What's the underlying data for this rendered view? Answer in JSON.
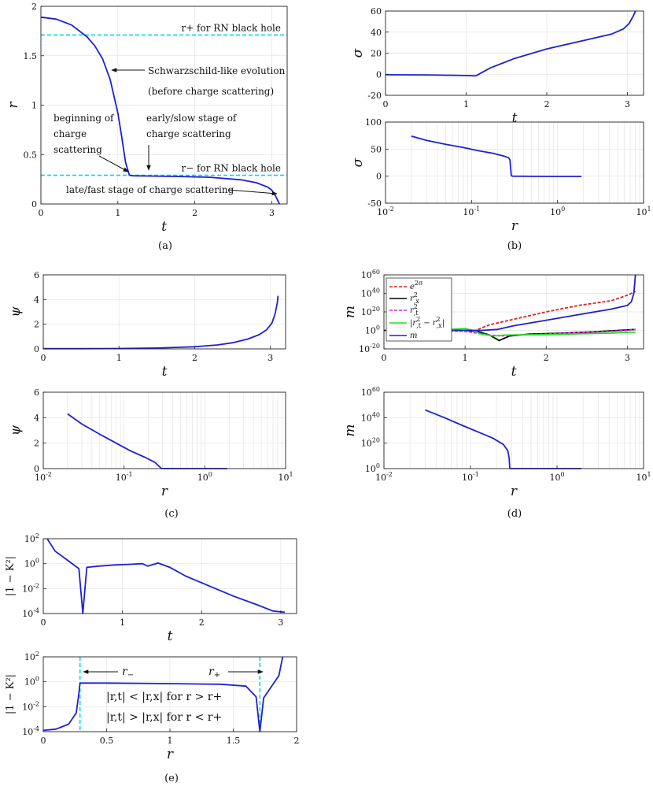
{
  "panels": {
    "a": {
      "caption": "(a)"
    },
    "b": {
      "caption": "(b)"
    },
    "c": {
      "caption": "(c)"
    },
    "d": {
      "caption": "(d)"
    },
    "e": {
      "caption": "(e)"
    }
  },
  "colors": {
    "curve": "#1f1fd6",
    "dashed": "#00d9e6",
    "er2": "#e62020",
    "rx2": "#000000",
    "rt2": "#e020e0",
    "diff": "#22dd22",
    "m": "#1f1fd6"
  },
  "chart_data": [
    {
      "id": "a_r_vs_t",
      "type": "line",
      "xlabel": "t",
      "ylabel": "r",
      "xlim": [
        0,
        3.2
      ],
      "ylim": [
        0,
        2
      ],
      "xticks": [
        0,
        1,
        2,
        3
      ],
      "yticks": [
        0,
        0.5,
        1,
        1.5,
        2
      ],
      "ytick_labels": [
        "0",
        "0.5",
        "1",
        "1.5",
        "2"
      ],
      "grid": true,
      "series": [
        {
          "x": [
            0,
            0.2,
            0.4,
            0.6,
            0.7,
            0.8,
            0.9,
            1.0,
            1.05,
            1.1,
            1.15,
            1.2,
            1.4,
            1.8,
            2.2,
            2.6,
            2.8,
            2.95,
            3.0,
            3.05,
            3.1
          ],
          "values": [
            1.89,
            1.87,
            1.81,
            1.69,
            1.6,
            1.47,
            1.26,
            0.92,
            0.68,
            0.42,
            0.29,
            0.285,
            0.283,
            0.278,
            0.27,
            0.245,
            0.215,
            0.17,
            0.14,
            0.08,
            0.0
          ]
        }
      ],
      "reference_lines": [
        {
          "y": 1.71,
          "label": "r+ for RN black hole"
        },
        {
          "y": 0.29,
          "label": "r− for RN black hole"
        }
      ],
      "annotations": [
        "Schwarzschild-like evolution",
        "(before charge scattering)",
        "beginning of",
        "charge",
        "scattering",
        "early/slow stage of",
        "charge scattering",
        "late/fast stage of charge scattering"
      ]
    },
    {
      "id": "b_sigma_vs_t",
      "type": "line",
      "xlabel": "t",
      "ylabel": "σ",
      "xlim": [
        0,
        3.2
      ],
      "ylim": [
        -20,
        60
      ],
      "xticks": [
        0,
        1,
        2,
        3
      ],
      "yticks": [
        -20,
        0,
        20,
        40,
        60
      ],
      "grid": true,
      "series": [
        {
          "x": [
            0,
            0.5,
            1.0,
            1.12,
            1.3,
            1.6,
            2.0,
            2.4,
            2.8,
            2.95,
            3.02,
            3.07,
            3.1
          ],
          "values": [
            -0.5,
            -0.6,
            -1.2,
            -1.5,
            6,
            15,
            24,
            31,
            38,
            43,
            48,
            55,
            60
          ]
        }
      ]
    },
    {
      "id": "b_sigma_vs_r",
      "type": "line",
      "xlabel": "r",
      "ylabel": "σ",
      "xscale": "log",
      "xlim": [
        0.01,
        10
      ],
      "ylim": [
        -50,
        100
      ],
      "xticks": [
        0.01,
        0.1,
        1,
        10
      ],
      "xtick_bases": [
        "10",
        "10",
        "10",
        "10"
      ],
      "xtick_exps": [
        "-2",
        "-1",
        "0",
        "1"
      ],
      "yticks": [
        -50,
        0,
        50,
        100
      ],
      "grid": true,
      "series": [
        {
          "x": [
            0.02,
            0.03,
            0.05,
            0.08,
            0.12,
            0.18,
            0.24,
            0.27,
            0.28,
            0.29,
            0.3,
            0.5,
            1.0,
            1.9
          ],
          "values": [
            74,
            66,
            59,
            53,
            47,
            42,
            37,
            34,
            30,
            1,
            0,
            -0.3,
            -0.5,
            -0.5
          ]
        }
      ]
    },
    {
      "id": "c_psi_vs_t",
      "type": "line",
      "xlabel": "t",
      "ylabel": "ψ",
      "xlim": [
        0,
        3.2
      ],
      "ylim": [
        0,
        6
      ],
      "xticks": [
        0,
        1,
        2,
        3
      ],
      "yticks": [
        0,
        2,
        4,
        6
      ],
      "grid": true,
      "series": [
        {
          "x": [
            0,
            0.5,
            1.0,
            1.5,
            2.0,
            2.3,
            2.5,
            2.7,
            2.85,
            2.95,
            3.02,
            3.06,
            3.09,
            3.1
          ],
          "values": [
            0.02,
            0.02,
            0.03,
            0.07,
            0.17,
            0.32,
            0.5,
            0.8,
            1.15,
            1.55,
            2.1,
            2.8,
            3.7,
            4.3
          ]
        }
      ]
    },
    {
      "id": "c_psi_vs_r",
      "type": "line",
      "xlabel": "r",
      "ylabel": "ψ",
      "xscale": "log",
      "xlim": [
        0.01,
        10
      ],
      "ylim": [
        0,
        6
      ],
      "xticks": [
        0.01,
        0.1,
        1,
        10
      ],
      "xtick_bases": [
        "10",
        "10",
        "10",
        "10"
      ],
      "xtick_exps": [
        "-2",
        "-1",
        "0",
        "1"
      ],
      "yticks": [
        0,
        2,
        4,
        6
      ],
      "grid": true,
      "series": [
        {
          "x": [
            0.02,
            0.03,
            0.05,
            0.08,
            0.12,
            0.18,
            0.24,
            0.28,
            0.29,
            0.5,
            1.0,
            1.9
          ],
          "values": [
            4.3,
            3.5,
            2.7,
            2.0,
            1.4,
            0.9,
            0.5,
            0.1,
            0.01,
            0.0,
            0.0,
            0.0
          ]
        }
      ]
    },
    {
      "id": "d_m_vs_t",
      "type": "line",
      "xlabel": "t",
      "ylabel": "m",
      "yscale": "log",
      "xlim": [
        0,
        3.2
      ],
      "ylim": [
        -20,
        60
      ],
      "xticks": [
        0,
        1,
        2,
        3
      ],
      "yticks": [
        -20,
        0,
        20,
        40,
        60
      ],
      "ytick_bases": [
        "10",
        "10",
        "10",
        "10",
        "10"
      ],
      "ytick_exps": [
        "-20",
        "0",
        "20",
        "40",
        "60"
      ],
      "ylim_note": "values are log10 exponents",
      "legend": "top-left",
      "grid": true,
      "series": [
        {
          "name": "e^{2σ}",
          "x": [
            0,
            0.5,
            1.0,
            1.1,
            1.3,
            1.6,
            2.0,
            2.4,
            2.8,
            3.0,
            3.1
          ],
          "values": [
            0,
            0,
            -0.5,
            -1,
            6,
            12,
            20,
            27,
            32,
            38,
            42
          ]
        },
        {
          "name": "r_{,x}^2",
          "x": [
            0,
            0.5,
            1.0,
            1.15,
            1.3,
            1.42,
            1.55,
            1.8,
            2.2,
            2.6,
            3.0,
            3.1
          ],
          "values": [
            0,
            0,
            0,
            -1,
            -5,
            -11,
            -6,
            -4,
            -3,
            -1.5,
            0.5,
            1
          ]
        },
        {
          "name": "r_{,t}^2",
          "x": [
            0,
            0.5,
            1.0,
            1.15,
            1.3,
            1.45,
            1.6,
            2.0,
            2.4,
            2.8,
            3.0,
            3.1
          ],
          "values": [
            0,
            0,
            -1,
            -3,
            -5,
            -6,
            -5,
            -4,
            -2.5,
            -1,
            0,
            1
          ]
        },
        {
          "name": "|r_{,t}^2 − r_{,x}^2|",
          "x": [
            0,
            0.5,
            0.8,
            1.0,
            1.1,
            1.2,
            1.35,
            1.5,
            2.0,
            2.5,
            2.8,
            3.0,
            3.1
          ],
          "values": [
            0,
            0,
            1,
            2,
            0,
            -4,
            -6,
            -5,
            -4.5,
            -3.5,
            -3,
            -2,
            -2
          ]
        },
        {
          "name": "m",
          "x": [
            0,
            0.5,
            1.0,
            1.2,
            1.4,
            1.6,
            2.0,
            2.4,
            2.8,
            3.0,
            3.05,
            3.08,
            3.1
          ],
          "values": [
            0,
            0,
            0,
            0,
            1,
            5,
            11,
            17,
            23,
            27,
            31,
            40,
            60
          ]
        }
      ]
    },
    {
      "id": "d_m_vs_r",
      "type": "line",
      "xlabel": "r",
      "ylabel": "m",
      "xscale": "log",
      "yscale": "log",
      "xlim": [
        0.01,
        10
      ],
      "ylim": [
        0,
        60
      ],
      "xticks": [
        0.01,
        0.1,
        1,
        10
      ],
      "xtick_bases": [
        "10",
        "10",
        "10",
        "10"
      ],
      "xtick_exps": [
        "-2",
        "-1",
        "0",
        "1"
      ],
      "yticks": [
        0,
        20,
        40,
        60
      ],
      "ytick_bases": [
        "10",
        "10",
        "10",
        "10"
      ],
      "ytick_exps": [
        "0",
        "20",
        "40",
        "60"
      ],
      "grid": true,
      "series": [
        {
          "x": [
            0.03,
            0.05,
            0.08,
            0.12,
            0.18,
            0.24,
            0.27,
            0.28,
            0.285,
            0.5,
            1.0,
            1.9
          ],
          "values": [
            46,
            40,
            34,
            29,
            24,
            19,
            14,
            8,
            0,
            0,
            0,
            0
          ]
        }
      ]
    },
    {
      "id": "e_K_vs_t",
      "type": "line",
      "xlabel": "t",
      "ylabel": "|1 − K²|",
      "yscale": "log",
      "xlim": [
        0,
        3.2
      ],
      "ylim": [
        -4,
        2
      ],
      "xticks": [
        0,
        1,
        2,
        3
      ],
      "yticks": [
        -4,
        -2,
        0,
        2
      ],
      "ytick_bases": [
        "10",
        "10",
        "10",
        "10"
      ],
      "ytick_exps": [
        "-4",
        "-2",
        "0",
        "2"
      ],
      "grid": true,
      "series": [
        {
          "x": [
            0.05,
            0.15,
            0.3,
            0.45,
            0.5,
            0.55,
            0.7,
            0.9,
            1.1,
            1.25,
            1.32,
            1.45,
            1.6,
            1.8,
            2.1,
            2.4,
            2.7,
            2.9,
            3.05
          ],
          "values": [
            2,
            1,
            0.3,
            -0.4,
            -4,
            -0.3,
            -0.2,
            -0.1,
            -0.05,
            0,
            -0.2,
            0.05,
            -0.3,
            -1,
            -1.8,
            -2.6,
            -3.3,
            -3.8,
            -3.9
          ]
        }
      ]
    },
    {
      "id": "e_K_vs_r",
      "type": "line",
      "xlabel": "r",
      "ylabel": "|1 − K²|",
      "yscale": "log",
      "xlim": [
        0,
        2
      ],
      "ylim": [
        -4,
        2
      ],
      "xticks": [
        0,
        0.5,
        1,
        1.5,
        2
      ],
      "xtick_labels": [
        "0",
        "0.5",
        "1",
        "1.5",
        "2"
      ],
      "yticks": [
        -4,
        -2,
        0,
        2
      ],
      "ytick_bases": [
        "10",
        "10",
        "10",
        "10"
      ],
      "ytick_exps": [
        "-4",
        "-2",
        "0",
        "2"
      ],
      "grid": true,
      "series": [
        {
          "x": [
            0,
            0.1,
            0.2,
            0.26,
            0.28,
            0.29,
            0.31,
            0.5,
            1.0,
            1.4,
            1.6,
            1.68,
            1.71,
            1.74,
            1.8,
            1.86,
            1.89
          ],
          "values": [
            -3.9,
            -3.8,
            -3.4,
            -2.5,
            -1,
            -0.1,
            -0.1,
            -0.1,
            -0.15,
            -0.2,
            -0.35,
            -1.2,
            -4,
            -1.3,
            -0.4,
            0.5,
            2
          ]
        }
      ],
      "reference_lines": [
        {
          "x": 0.29,
          "label": "r−"
        },
        {
          "x": 1.71,
          "label": "r+"
        }
      ],
      "annotations": [
        "|r,t| < |r,x| for r > r+",
        "|r,t| > |r,x| for r < r+"
      ]
    }
  ]
}
